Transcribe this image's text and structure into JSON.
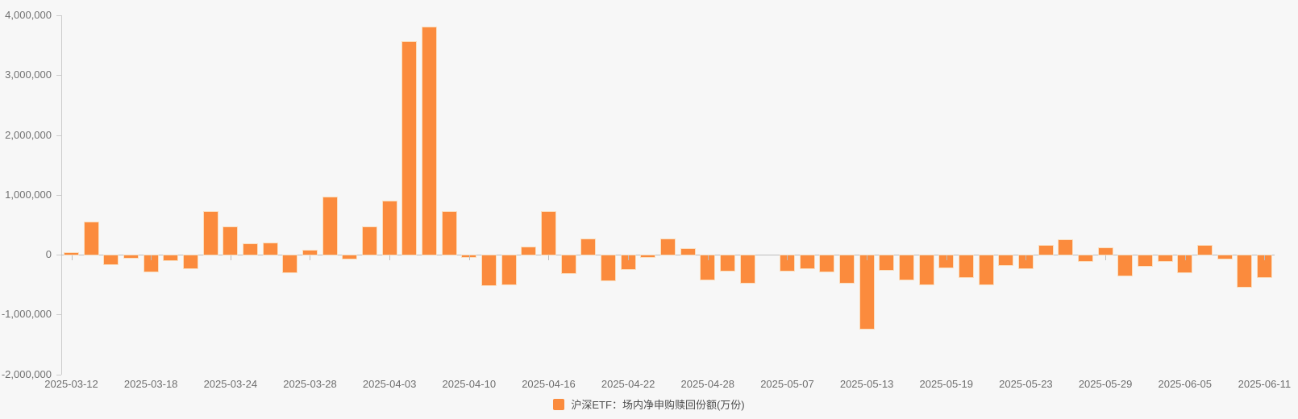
{
  "chart_data": {
    "type": "bar",
    "title": "",
    "series_name": "沪深ETF：场内净申购赎回份额(万份)",
    "bar_color": "#fb8b3d",
    "background_color": "#f7f7f7",
    "legend_position": "bottom-center",
    "grid": false,
    "ylim": [
      -2000000,
      4000000
    ],
    "y_ticks": [
      4000000,
      3000000,
      2000000,
      1000000,
      0,
      -1000000,
      -2000000
    ],
    "x_tick_label_every": 4,
    "x_tick_labels": [
      "2025-03-12",
      "2025-03-18",
      "2025-03-24",
      "2025-03-28",
      "2025-04-03",
      "2025-04-10",
      "2025-04-16",
      "2025-04-22",
      "2025-04-28",
      "2025-05-07",
      "2025-05-13",
      "2025-05-19",
      "2025-05-23",
      "2025-05-29",
      "2025-06-05",
      "2025-06-11"
    ],
    "categories": [
      "2025-03-12",
      "2025-03-13",
      "2025-03-14",
      "2025-03-17",
      "2025-03-18",
      "2025-03-19",
      "2025-03-20",
      "2025-03-21",
      "2025-03-24",
      "2025-03-25",
      "2025-03-26",
      "2025-03-27",
      "2025-03-28",
      "2025-03-31",
      "2025-04-01",
      "2025-04-02",
      "2025-04-03",
      "2025-04-07",
      "2025-04-08",
      "2025-04-09",
      "2025-04-10",
      "2025-04-11",
      "2025-04-14",
      "2025-04-15",
      "2025-04-16",
      "2025-04-17",
      "2025-04-18",
      "2025-04-21",
      "2025-04-22",
      "2025-04-23",
      "2025-04-24",
      "2025-04-25",
      "2025-04-28",
      "2025-04-29",
      "2025-04-30",
      "2025-05-06",
      "2025-05-07",
      "2025-05-08",
      "2025-05-09",
      "2025-05-12",
      "2025-05-13",
      "2025-05-14",
      "2025-05-15",
      "2025-05-16",
      "2025-05-19",
      "2025-05-20",
      "2025-05-21",
      "2025-05-22",
      "2025-05-23",
      "2025-05-26",
      "2025-05-27",
      "2025-05-28",
      "2025-05-29",
      "2025-05-30",
      "2025-06-03",
      "2025-06-04",
      "2025-06-05",
      "2025-06-06",
      "2025-06-09",
      "2025-06-10",
      "2025-06-11"
    ],
    "values": [
      30000,
      540000,
      -145000,
      -35000,
      -270000,
      -75000,
      -210000,
      710000,
      460000,
      170000,
      190000,
      -280000,
      65000,
      950000,
      -50000,
      460000,
      890000,
      3550000,
      3800000,
      710000,
      -30000,
      -500000,
      -480000,
      125000,
      710000,
      -300000,
      250000,
      -420000,
      -225000,
      -25000,
      250000,
      95000,
      -400000,
      -250000,
      -460000,
      0,
      -260000,
      -210000,
      -270000,
      -460000,
      -1230000,
      -240000,
      -410000,
      -490000,
      -200000,
      -360000,
      -480000,
      -160000,
      -220000,
      150000,
      240000,
      -100000,
      105000,
      -340000,
      -180000,
      -100000,
      -280000,
      145000,
      -60000,
      -530000,
      -370000
    ]
  },
  "legend": {
    "label": "沪深ETF：场内净申购赎回份额(万份)",
    "swatch_color": "#fb8b3d"
  }
}
